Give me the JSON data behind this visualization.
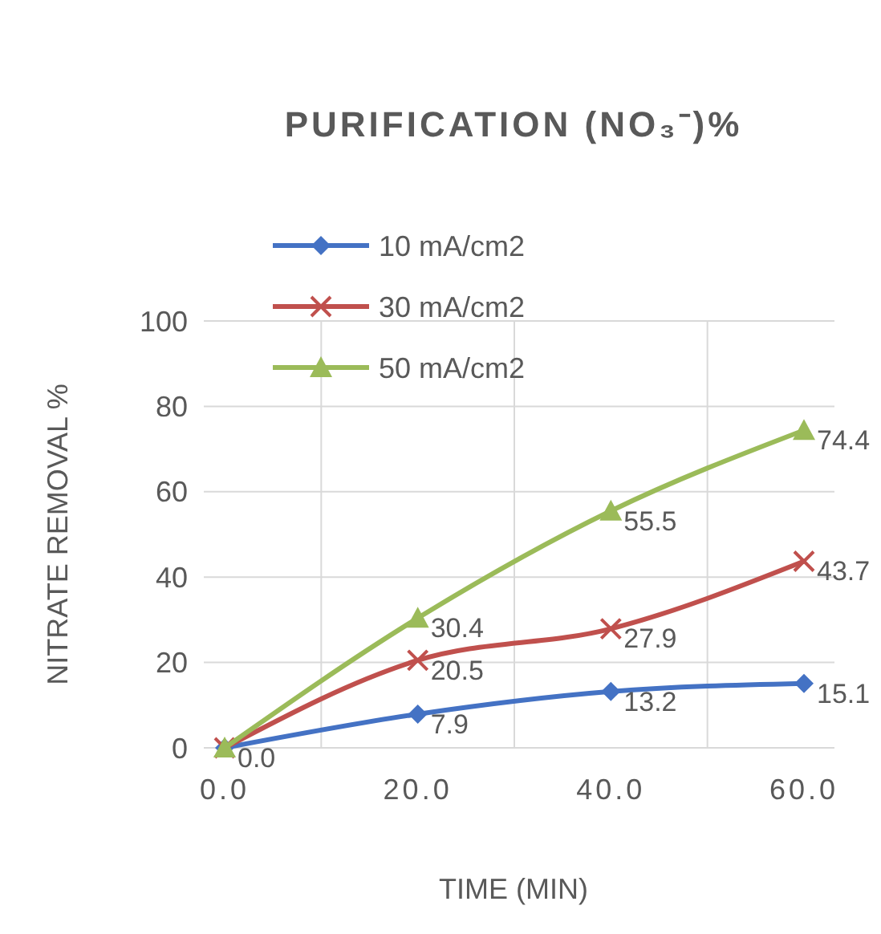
{
  "chart_data": {
    "type": "line",
    "title": "PURIFICATION (NO₃⁻)%",
    "xlabel": "TIME (MIN)",
    "ylabel": "NITRATE REMOVAL %",
    "categories": [
      "0.0",
      "20.0",
      "40.0",
      "60.0"
    ],
    "series": [
      {
        "name": "10 mA/cm2",
        "color": "#4472c4",
        "marker": "diamond",
        "values": [
          0,
          7.9,
          13.2,
          15.1
        ],
        "value_labels": [
          "0.0",
          "7.9",
          "13.2",
          "15.1"
        ]
      },
      {
        "name": "30 mA/cm2",
        "color": "#c0504d",
        "marker": "cross",
        "values": [
          0,
          20.5,
          27.9,
          43.7
        ],
        "value_labels": [
          null,
          "20.5",
          "27.9",
          "43.7"
        ]
      },
      {
        "name": "50 mA/cm2",
        "color": "#9bbb59",
        "marker": "triangle",
        "values": [
          0,
          30.4,
          55.5,
          74.4
        ],
        "value_labels": [
          null,
          "30.4",
          "55.5",
          "74.4"
        ]
      }
    ],
    "ylim": [
      0,
      100
    ],
    "yticks": [
      0,
      20,
      40,
      60,
      80,
      100
    ],
    "grid": true,
    "legend": "top left",
    "line_style": "solid"
  }
}
